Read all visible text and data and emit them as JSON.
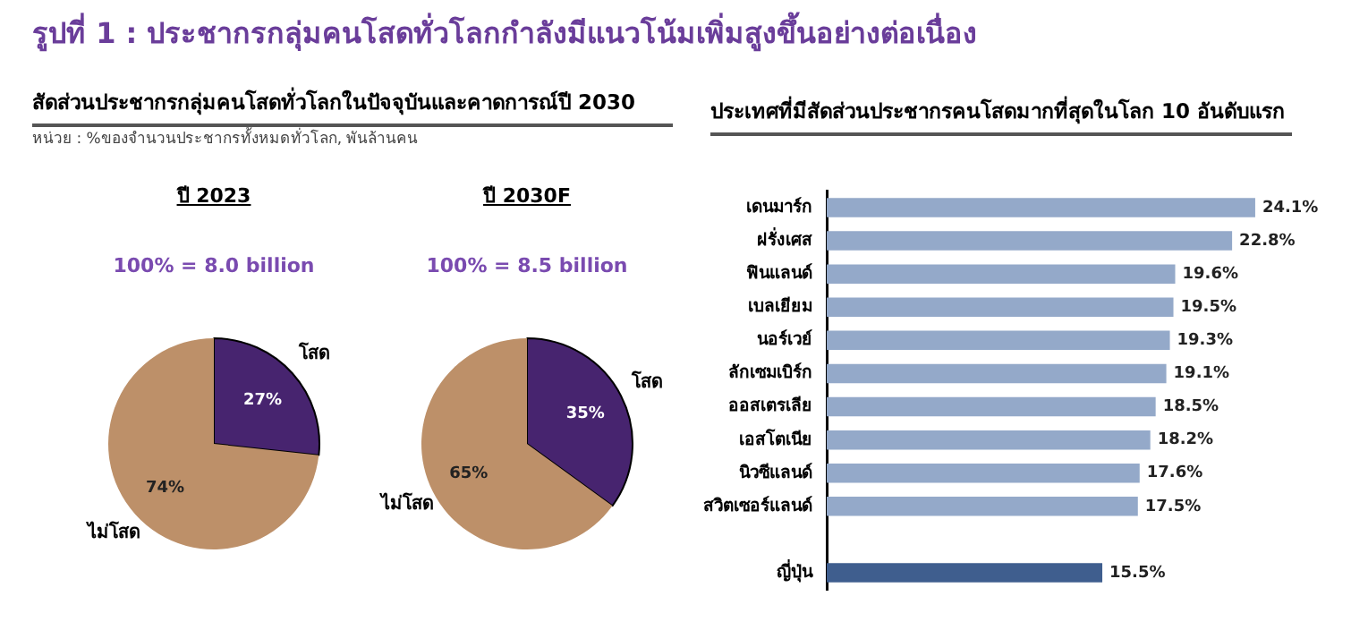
{
  "chart_data": [
    {
      "type": "pie",
      "title": "ปี 2023",
      "subtitle": "100% = 8.0 billion",
      "annotations": [
        "รูปที่ 1 : ประชากรกลุ่มคนโสดทั่วโลกกำลังมีแนวโน้มเพิ่มสูงขึ้นอย่างต่อเนื่อง",
        "สัดส่วนประชากรกลุ่มคนโสดทั่วโลกในปัจจุบันและคาดการณ์ปี 2030",
        "หน่วย : %ของจำนวนประชากรทั้งหมดทั่วโลก, พันล้านคน"
      ],
      "categories": [
        "โสด",
        "ไม่โสด"
      ],
      "values": [
        27,
        74
      ],
      "colors": [
        "#47246f",
        "#bd9069"
      ],
      "value_labels": [
        "27%",
        "74%"
      ]
    },
    {
      "type": "pie",
      "title": "ปี 2030F",
      "subtitle": "100% = 8.5 billion",
      "categories": [
        "โสด",
        "ไม่โสด"
      ],
      "values": [
        35,
        65
      ],
      "colors": [
        "#47246f",
        "#bd9069"
      ],
      "value_labels": [
        "35%",
        "65%"
      ]
    },
    {
      "type": "bar",
      "orientation": "horizontal",
      "title": "ประเทศที่มีสัดส่วนประชากรคนโสดมากที่สุดในโลก 10 อันดับแรก",
      "categories": [
        "เดนมาร์ก",
        "ฝรั่งเศส",
        "ฟินแลนด์",
        "เบลเยียม",
        "นอร์เวย์",
        "ลักเซมเบิร์ก",
        "ออสเตรเลีย",
        "เอสโตเนีย",
        "นิวซีแลนด์",
        "สวิตเซอร์แลนด์",
        null,
        "ญี่ปุ่น"
      ],
      "values": [
        24.1,
        22.8,
        19.6,
        19.5,
        19.3,
        19.1,
        18.5,
        18.2,
        17.6,
        17.5,
        null,
        15.5
      ],
      "colors": [
        "#94a9c9",
        "#94a9c9",
        "#94a9c9",
        "#94a9c9",
        "#94a9c9",
        "#94a9c9",
        "#94a9c9",
        "#94a9c9",
        "#94a9c9",
        "#94a9c9",
        "#94a9c9",
        "#3f5e8e"
      ],
      "value_labels": [
        "24.1%",
        "22.8%",
        "19.6%",
        "19.5%",
        "19.3%",
        "19.1%",
        "18.5%",
        "18.2%",
        "17.6%",
        "17.5%",
        null,
        "15.5%"
      ]
    }
  ]
}
